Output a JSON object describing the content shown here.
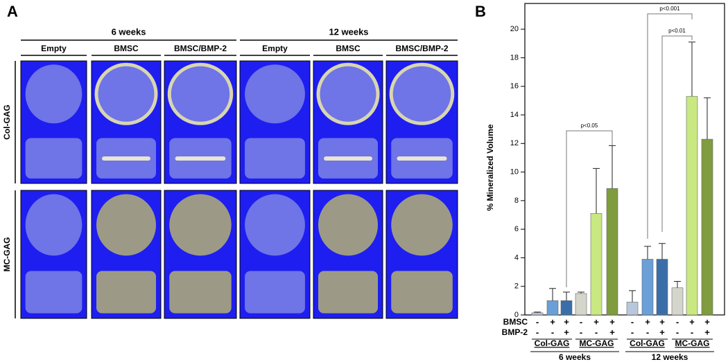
{
  "panel_a": {
    "label": "A",
    "times": [
      "6 weeks",
      "12 weeks"
    ],
    "columns": [
      "Empty",
      "BMSC",
      "BMSC/BMP-2",
      "Empty",
      "BMSC",
      "BMSC/BMP-2"
    ],
    "rows": [
      "Col-GAG",
      "MC-GAG"
    ]
  },
  "chart_data": {
    "type": "bar",
    "panel_label": "B",
    "y_label": "% Mineralized Volume",
    "values": [
      0.15,
      1.0,
      1.0,
      1.5,
      7.1,
      8.85,
      0.9,
      3.9,
      3.9,
      1.9,
      15.3,
      12.3
    ],
    "errors": [
      0.05,
      0.85,
      0.6,
      0.1,
      3.15,
      3.0,
      0.8,
      0.9,
      1.1,
      0.45,
      3.8,
      2.9
    ],
    "colors": [
      "#b8c8dc",
      "#6a9fd8",
      "#3a6ea8",
      "#d4d6cc",
      "#c9e882",
      "#7f9c3e",
      "#b8c8dc",
      "#6a9fd8",
      "#3a6ea8",
      "#d4d6cc",
      "#c9e882",
      "#7f9c3e"
    ],
    "row_labels": [
      "BMSC",
      "BMP-2"
    ],
    "bmsc_signs": [
      "-",
      "+",
      "+",
      "-",
      "+",
      "+",
      "-",
      "+",
      "+",
      "-",
      "+",
      "+"
    ],
    "bmp2_signs": [
      "-",
      "-",
      "+",
      "-",
      "-",
      "+",
      "-",
      "-",
      "+",
      "-",
      "-",
      "+"
    ],
    "groups": [
      "Col-GAG",
      "MC-GAG",
      "Col-GAG",
      "MC-GAG"
    ],
    "times": [
      "6 weeks",
      "12 weeks"
    ],
    "annotations": [
      "p<0.05",
      "p<0.001",
      "p<0.01"
    ],
    "ylim": [
      0,
      21.8
    ],
    "yticks": [
      0,
      2,
      4,
      6,
      8,
      10,
      12,
      14,
      16,
      18,
      20
    ]
  }
}
